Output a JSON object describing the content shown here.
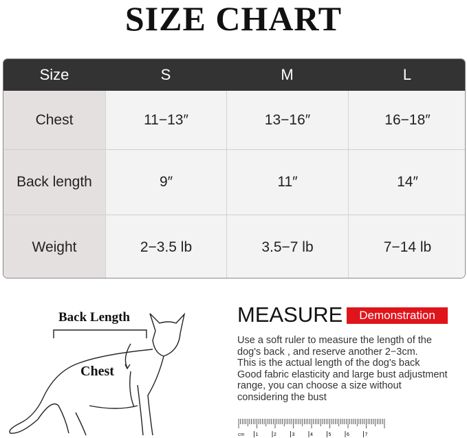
{
  "title": "SIZE CHART",
  "table": {
    "headers": [
      "Size",
      "S",
      "M",
      "L"
    ],
    "rows": [
      {
        "label": "Chest",
        "values": [
          "11−13″",
          "13−16″",
          "16−18″"
        ]
      },
      {
        "label": "Back length",
        "values": [
          "9″",
          "11″",
          "14″"
        ]
      },
      {
        "label": "Weight",
        "values": [
          "2−3.5 lb",
          "3.5−7 lb",
          "7−14 lb"
        ]
      }
    ]
  },
  "illustration": {
    "back_length_label": "Back Length",
    "chest_label": "Chest"
  },
  "measure": {
    "heading": "MEASURE",
    "badge": "Demonstration",
    "badge_color": "#e0141b",
    "lines": [
      "Use a soft ruler to measure the length of  the",
      "dog's back , and reserve another 2−3cm.",
      "This is the actual length of the dog's back",
      "Good fabric elasticity and large bust adjustment",
      "range, you can choose a size without",
      "considering the bust"
    ]
  },
  "ruler": {
    "unit": "cm",
    "numbers": [
      "1",
      "2",
      "3",
      "4",
      "5",
      "6",
      "7"
    ]
  }
}
